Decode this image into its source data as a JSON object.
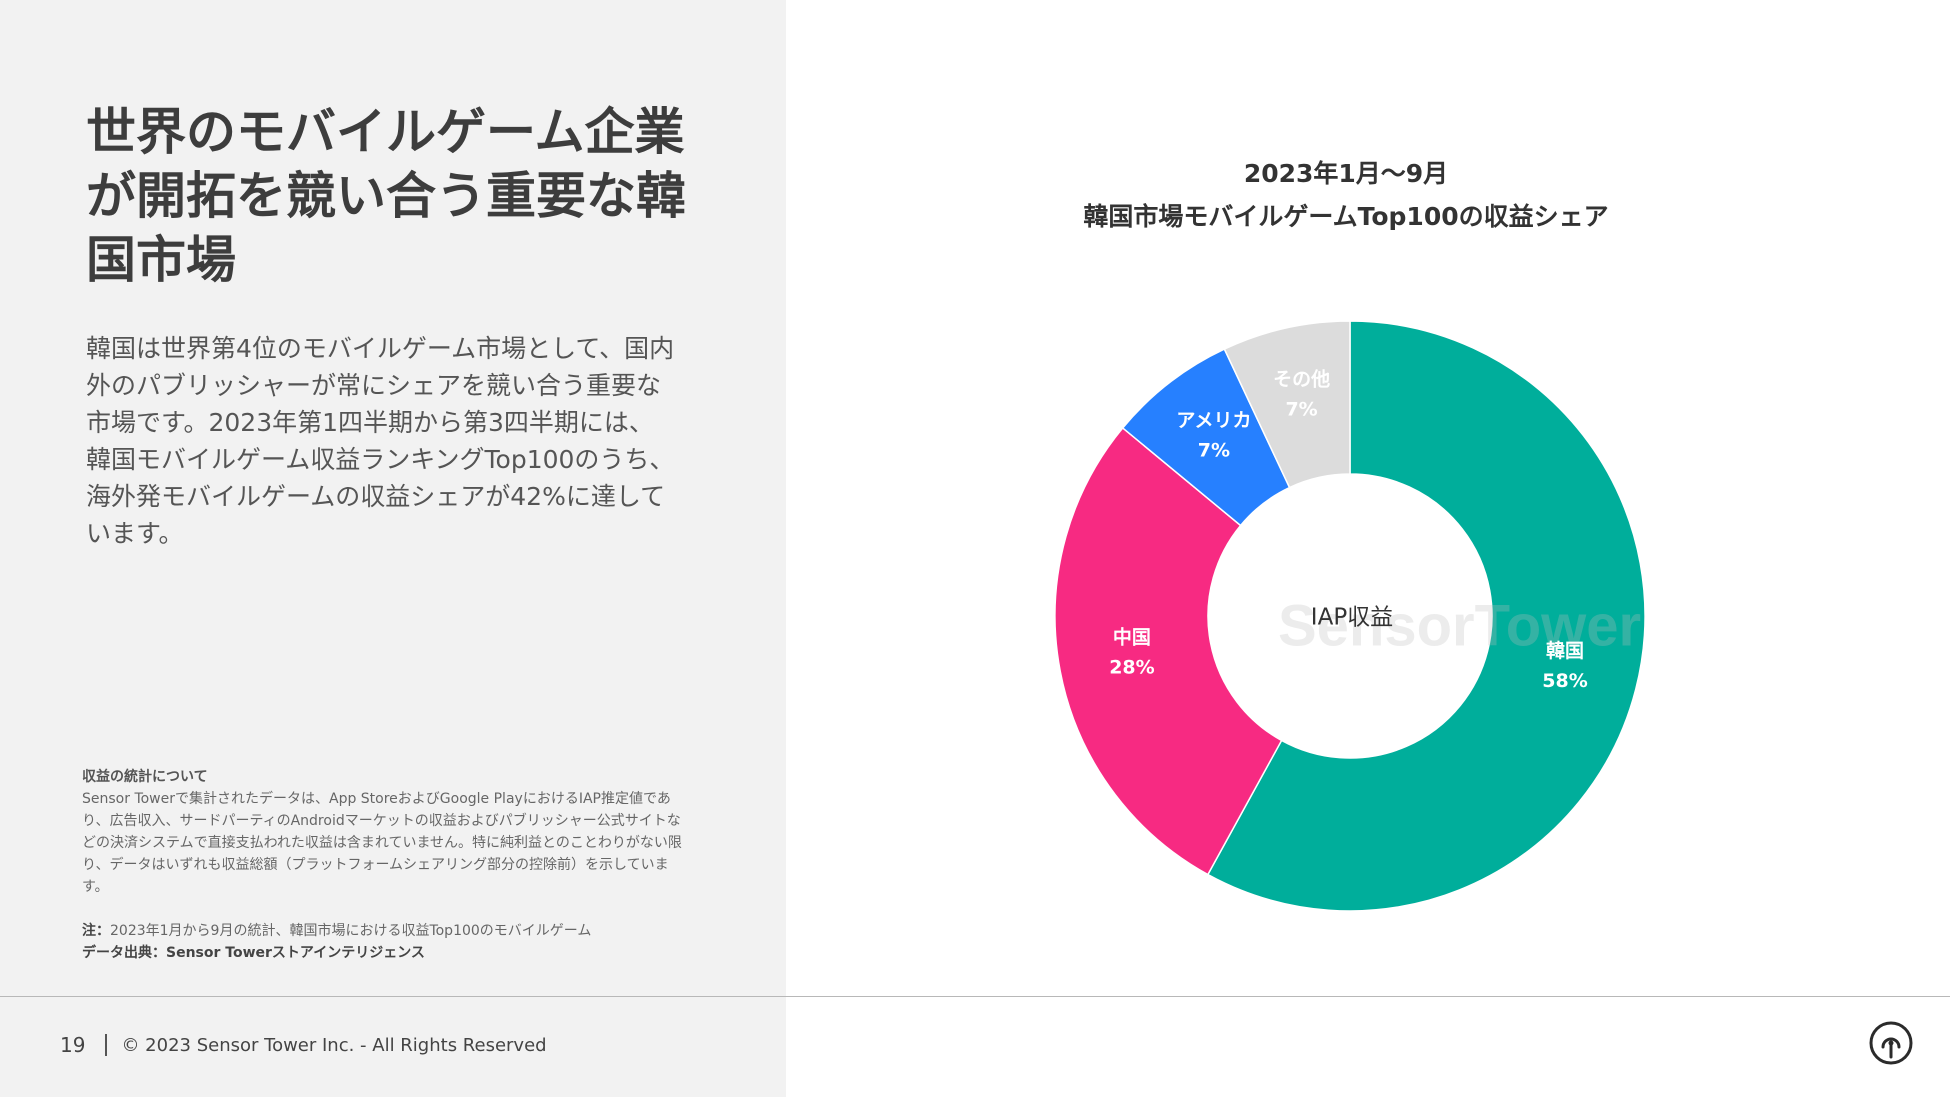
{
  "headline": "世界のモバイルゲーム企業が開拓を競い合う重要な韓国市場",
  "body": "韓国は世界第4位のモバイルゲーム市場として、国内外のパブリッシャーが常にシェアを競い合う重要な市場です。2023年第1四半期から第3四半期には、韓国モバイルゲーム収益ランキングTop100のうち、海外発モバイルゲームの収益シェアが42%に達しています。",
  "notes": {
    "title": "収益の統計について",
    "text": "Sensor Towerで集計されたデータは、App StoreおよびGoogle PlayにおけるIAP推定値であり、広告収入、サードパーティのAndroidマーケットの収益およびパブリッシャー公式サイトなどの決済システムで直接支払われた収益は含まれていません。特に純利益とのことわりがない限り、データはいずれも収益総額（プラットフォームシェアリング部分の控除前）を示しています。",
    "note_label": "注：",
    "note_text": "2023年1月から9月の統計、韓国市場における収益Top100のモバイルゲーム",
    "source": "データ出典：Sensor Towerストアインテリジェンス"
  },
  "footer": {
    "page_number": "19",
    "copyright": "© 2023 Sensor Tower Inc. - All Rights Reserved"
  },
  "logo_icon": "sensor-tower-logo-icon",
  "watermark": "SensorTower",
  "chart_data": {
    "type": "pie",
    "title_line1": "2023年1月〜9月",
    "title_line2": "韓国市場モバイルゲームTop100の収益シェア",
    "center_label": "IAP収益",
    "slices": [
      {
        "label": "韓国",
        "value": 58,
        "value_label": "58%",
        "color": "#00ae9b"
      },
      {
        "label": "中国",
        "value": 28,
        "value_label": "28%",
        "color": "#f72a82"
      },
      {
        "label": "アメリカ",
        "value": 7,
        "value_label": "7%",
        "color": "#2680ff"
      },
      {
        "label": "その他",
        "value": 7,
        "value_label": "7%",
        "color": "#dcdcdc"
      }
    ]
  }
}
